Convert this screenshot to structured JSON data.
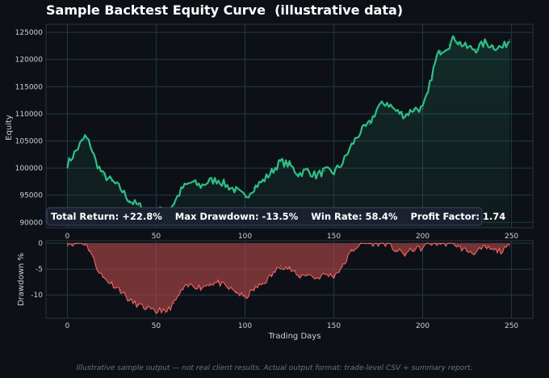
{
  "title": "Sample Backtest Equity Curve  (illustrative data)",
  "footer": "Illustrative sample output — not real client results. Actual output format: trade-level CSV + summary report.",
  "stats": {
    "text": "Total Return: +22.8%    Max Drawdown: -13.5%    Win Rate: 58.4%    Profit Factor: 1.74"
  },
  "colors": {
    "background": "#0d1117",
    "equity_line": "#2fbf86",
    "drawdown_fill": "#b54848",
    "drawdown_line": "#ff6b6b",
    "grid": "#1e3a46"
  },
  "chart_data": [
    {
      "type": "line",
      "title": "",
      "xlabel": "",
      "ylabel": "Equity",
      "xlim": [
        -12,
        262
      ],
      "ylim": [
        89000,
        126500
      ],
      "x_ticks": [
        0,
        50,
        100,
        150,
        200,
        250
      ],
      "y_ticks": [
        90000,
        95000,
        100000,
        105000,
        110000,
        115000,
        120000,
        125000
      ],
      "grid": true,
      "series": [
        {
          "name": "",
          "x": [
            0,
            5,
            10,
            13,
            16,
            20,
            25,
            30,
            35,
            40,
            45,
            50,
            52,
            55,
            60,
            65,
            70,
            75,
            80,
            85,
            90,
            95,
            100,
            105,
            110,
            115,
            120,
            125,
            130,
            135,
            140,
            145,
            150,
            155,
            160,
            165,
            170,
            175,
            180,
            185,
            190,
            195,
            200,
            203,
            205,
            208,
            210,
            215,
            218,
            220,
            225,
            230,
            235,
            240,
            245,
            249
          ],
          "values": [
            100700,
            103200,
            105800,
            104300,
            101200,
            98800,
            97600,
            96200,
            94000,
            93100,
            92400,
            91600,
            92500,
            91200,
            93600,
            96400,
            97400,
            96700,
            97600,
            97800,
            96700,
            95900,
            94600,
            96400,
            97600,
            99300,
            101200,
            100600,
            98900,
            99600,
            98600,
            99500,
            99200,
            101000,
            104200,
            106700,
            108100,
            111300,
            112100,
            110500,
            109700,
            110900,
            111000,
            113800,
            116900,
            120500,
            121600,
            122700,
            124100,
            123200,
            122200,
            121900,
            123100,
            122400,
            122200,
            123600
          ]
        }
      ]
    },
    {
      "type": "area",
      "title": "",
      "xlabel": "Trading Days",
      "ylabel": "Drawdown %",
      "xlim": [
        -12,
        262
      ],
      "ylim": [
        -14.5,
        0.5
      ],
      "x_ticks": [
        0,
        50,
        100,
        150,
        200,
        250
      ],
      "y_ticks": [
        0,
        -5,
        -10
      ],
      "grid": true,
      "series": [
        {
          "name": "",
          "x": [
            0,
            5,
            10,
            13,
            16,
            20,
            25,
            30,
            35,
            40,
            45,
            50,
            52,
            55,
            60,
            65,
            70,
            75,
            80,
            85,
            90,
            95,
            100,
            105,
            110,
            115,
            120,
            125,
            130,
            135,
            140,
            145,
            150,
            155,
            160,
            165,
            170,
            175,
            180,
            185,
            190,
            195,
            200,
            203,
            205,
            208,
            210,
            215,
            218,
            220,
            225,
            230,
            235,
            240,
            245,
            249
          ],
          "values": [
            0,
            0,
            0,
            -1.5,
            -4.3,
            -6.6,
            -7.8,
            -9.1,
            -11.1,
            -12,
            -12.6,
            -13.5,
            -12.6,
            -13.5,
            -11.6,
            -8.9,
            -8,
            -8.6,
            -7.8,
            -7.6,
            -8.6,
            -9.4,
            -10.6,
            -8.9,
            -7.8,
            -6.2,
            -4.3,
            -4.9,
            -6.5,
            -5.9,
            -6.8,
            -6,
            -6.3,
            -4.5,
            -1.5,
            0,
            0,
            0,
            0,
            -1.4,
            -2.1,
            -1.1,
            -1,
            0,
            0,
            0,
            0,
            0,
            0,
            -0.7,
            -1.5,
            -1.8,
            -0.8,
            -1.4,
            -1.5,
            -0.5
          ]
        }
      ]
    }
  ]
}
